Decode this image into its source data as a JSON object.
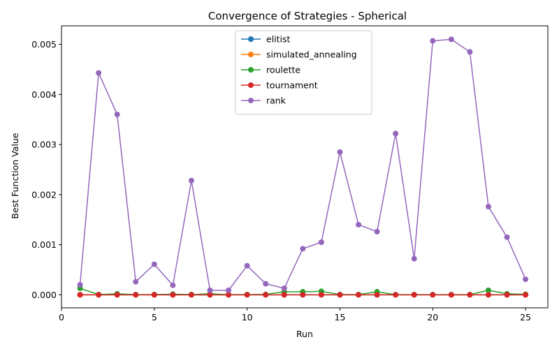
{
  "chart_data": {
    "type": "line",
    "title": "Convergence of Strategies - Spherical",
    "xlabel": "Run",
    "ylabel": "Best Function Value",
    "xlim": [
      0,
      26.2
    ],
    "ylim": [
      -0.00026,
      0.00537
    ],
    "xticks": [
      0,
      5,
      10,
      15,
      20,
      25
    ],
    "xtick_labels": [
      "0",
      "5",
      "10",
      "15",
      "20",
      "25"
    ],
    "yticks": [
      0,
      0.001,
      0.002,
      0.003,
      0.004,
      0.005
    ],
    "ytick_labels": [
      "0.000",
      "0.001",
      "0.002",
      "0.003",
      "0.004",
      "0.005"
    ],
    "grid": false,
    "legend_position": "upper center",
    "marker": "circle",
    "x": [
      1,
      2,
      3,
      4,
      5,
      6,
      7,
      8,
      9,
      10,
      11,
      12,
      13,
      14,
      15,
      16,
      17,
      18,
      19,
      20,
      21,
      22,
      23,
      24,
      25
    ],
    "series": [
      {
        "name": "elitist",
        "color": "#1f77b4",
        "values": [
          0,
          0,
          0,
          0,
          0,
          0,
          0,
          0,
          0,
          0,
          0,
          0,
          0,
          0,
          0,
          0,
          0,
          0,
          0,
          0,
          0,
          0,
          0,
          0,
          0
        ]
      },
      {
        "name": "simulated_annealing",
        "color": "#ff7f0e",
        "values": [
          0,
          0,
          0,
          0,
          0,
          0,
          0,
          0,
          0,
          0,
          0,
          0,
          0,
          0,
          0,
          0,
          0,
          0,
          0,
          0,
          0,
          0,
          0,
          0,
          0
        ]
      },
      {
        "name": "roulette",
        "color": "#2ca02c",
        "values": [
          0.00013,
          5e-06,
          2e-05,
          3e-06,
          5e-06,
          1.2e-05,
          5e-06,
          2e-05,
          3e-06,
          5e-06,
          8e-06,
          6e-05,
          6e-05,
          7e-05,
          5e-06,
          5e-06,
          6e-05,
          3e-06,
          3e-06,
          3e-06,
          3e-06,
          5e-06,
          9e-05,
          2e-05,
          1e-05
        ]
      },
      {
        "name": "tournament",
        "color": "#d62728",
        "values": [
          0,
          0,
          0,
          0,
          0,
          0,
          0,
          0,
          0,
          0,
          0,
          0,
          0,
          0,
          0,
          0,
          0,
          0,
          0,
          0,
          0,
          0,
          0,
          0,
          0
        ]
      },
      {
        "name": "rank",
        "color": "#9467bd",
        "values": [
          0.0002,
          0.00443,
          0.0036,
          0.00026,
          0.00061,
          0.00019,
          0.00228,
          9e-05,
          9e-05,
          0.00058,
          0.00022,
          0.00013,
          0.00092,
          0.00105,
          0.00285,
          0.0014,
          0.00126,
          0.00322,
          0.00072,
          0.00507,
          0.0051,
          0.00485,
          0.00176,
          0.00115,
          0.00031
        ]
      }
    ]
  }
}
